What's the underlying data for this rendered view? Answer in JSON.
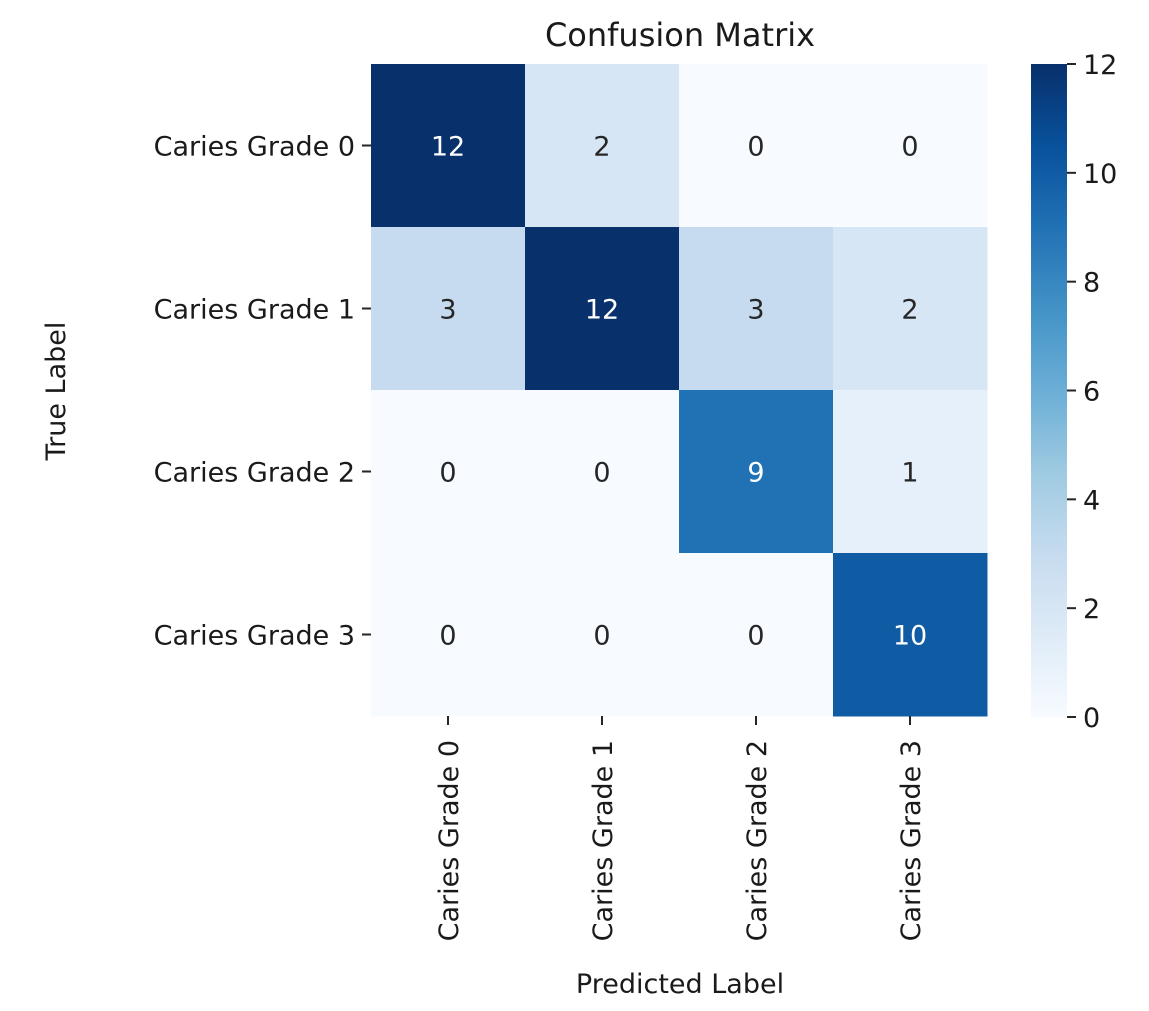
{
  "chart_data": {
    "type": "heatmap",
    "title": "Confusion Matrix",
    "xlabel": "Predicted Label",
    "ylabel": "True Label",
    "row_labels": [
      "Caries Grade 0",
      "Caries Grade 1",
      "Caries Grade 2",
      "Caries Grade 3"
    ],
    "col_labels": [
      "Caries Grade 0",
      "Caries Grade 1",
      "Caries Grade 2",
      "Caries Grade 3"
    ],
    "values": [
      [
        12,
        2,
        0,
        0
      ],
      [
        3,
        12,
        3,
        2
      ],
      [
        0,
        0,
        9,
        1
      ],
      [
        0,
        0,
        0,
        10
      ]
    ],
    "colorbar": {
      "min": 0,
      "max": 12,
      "ticks": [
        0,
        2,
        4,
        6,
        8,
        10,
        12
      ]
    },
    "colormap": "Blues",
    "colormap_stops": [
      "#f7fbff",
      "#deebf7",
      "#c6dbef",
      "#9ecae1",
      "#6baed6",
      "#4292c6",
      "#2171b5",
      "#08519c",
      "#08306b"
    ],
    "text_colors": {
      "light": "#ffffff",
      "dark": "#262626"
    }
  }
}
